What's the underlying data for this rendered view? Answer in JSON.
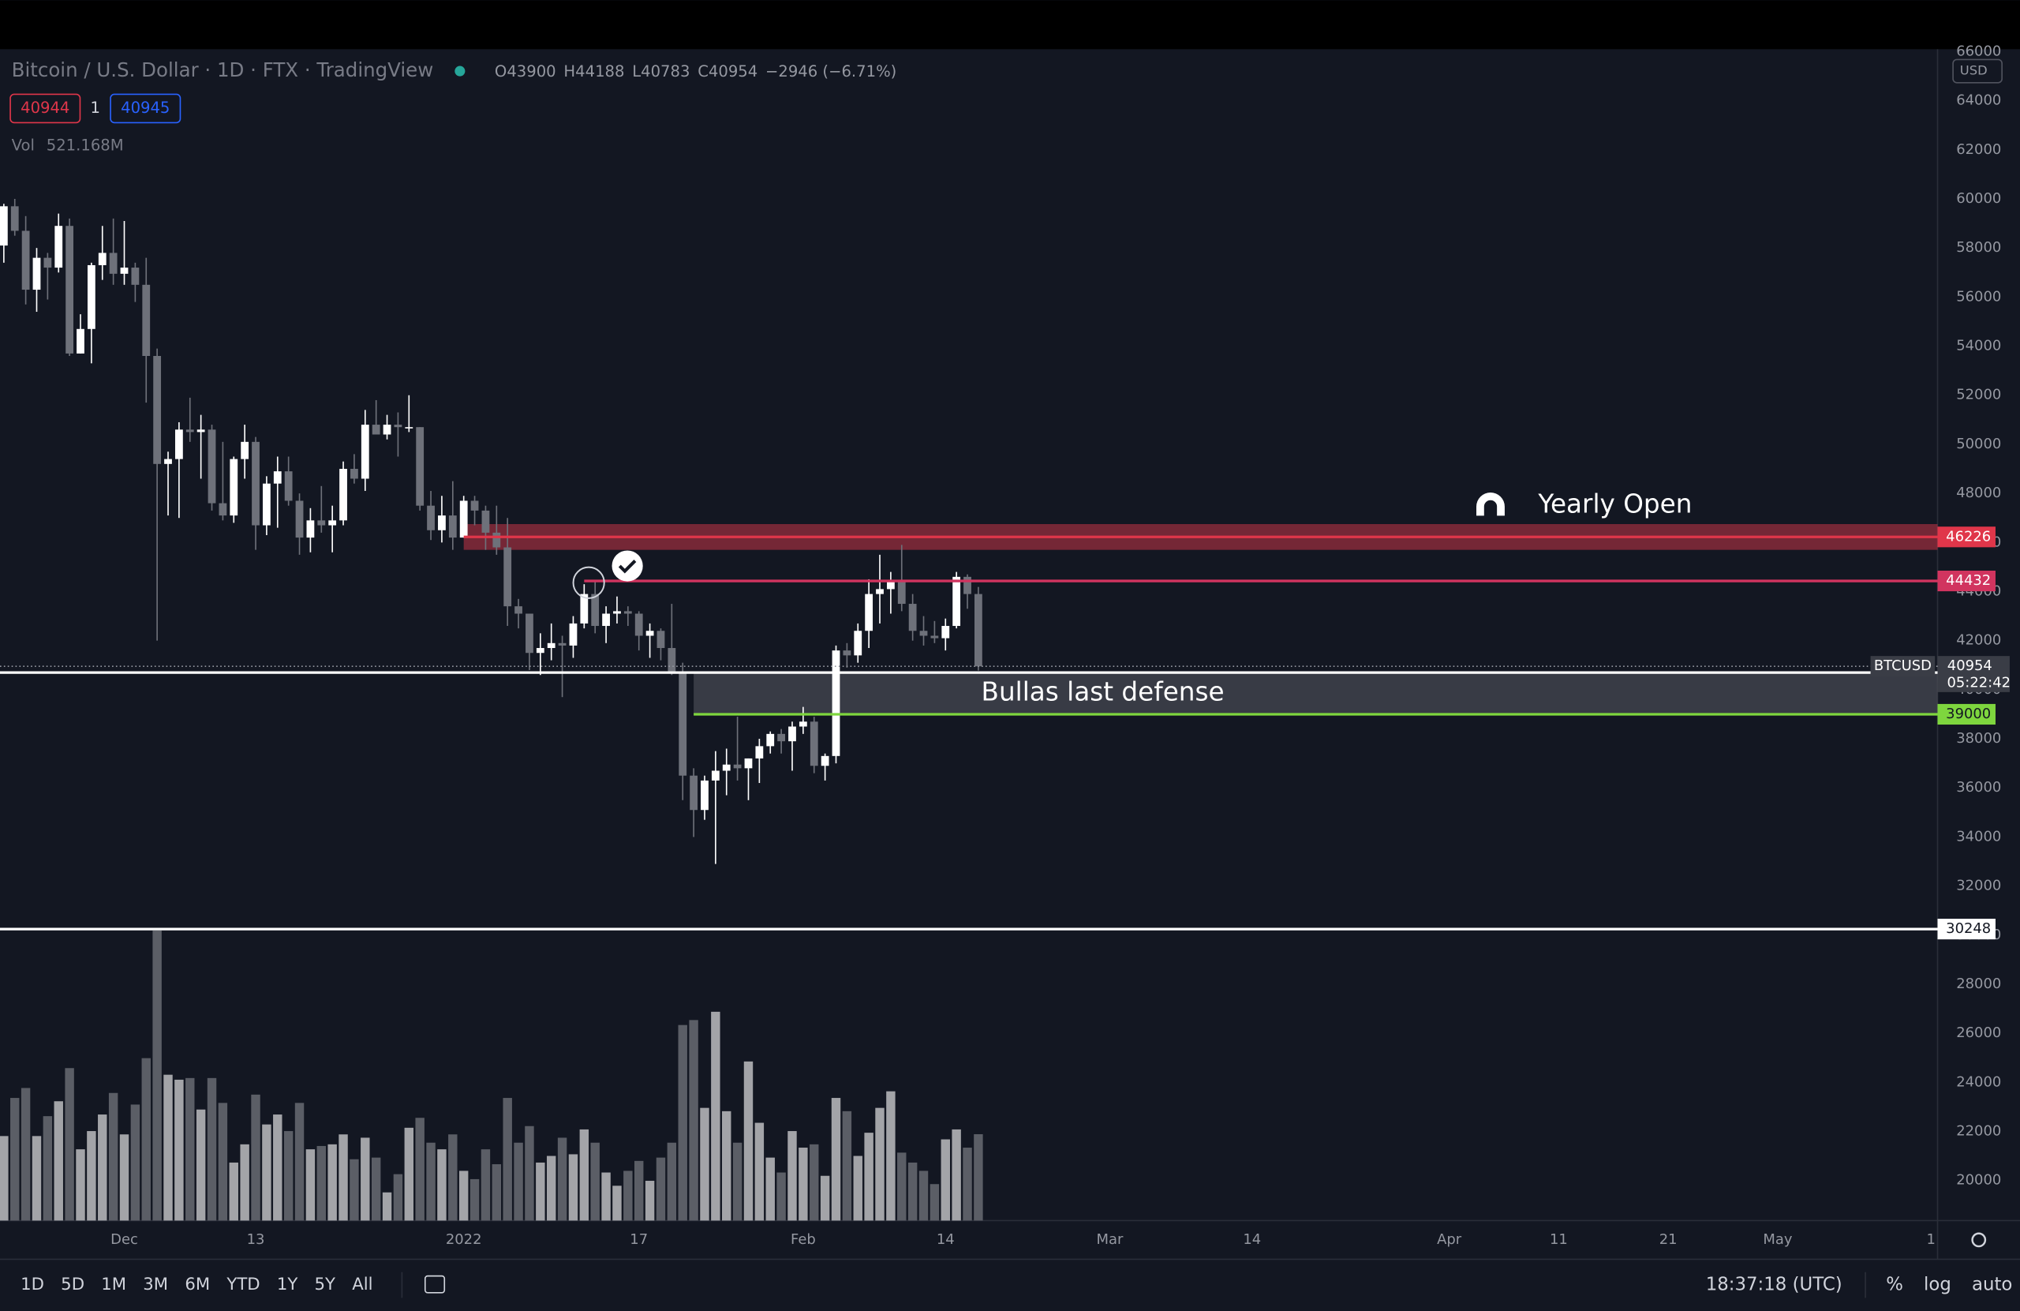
{
  "chart_data": {
    "type": "candlestick",
    "title": "Bitcoin / U.S. Dollar · 1D · FTX · TradingView",
    "ohlc_header": [
      "O43900",
      "H44188",
      "L40783",
      "C40954",
      "−2946 (−6.71%)"
    ],
    "order_boxes": [
      "40944",
      "1",
      "40945"
    ],
    "volume_label": "Vol",
    "volume_text": "521.168M",
    "currency": "USD",
    "open": [
      58100,
      59700,
      58700,
      56300,
      57600,
      57200,
      58900,
      53700,
      54700,
      57300,
      57800,
      56950,
      57200,
      56500,
      53600,
      49200,
      49400,
      50600,
      50500,
      50600,
      47600,
      47100,
      49400,
      50100,
      46700,
      48400,
      48900,
      47700,
      46200,
      46900,
      46700,
      46900,
      49000,
      48600,
      50800,
      50400,
      50800,
      50700,
      50700,
      47500,
      46500,
      47100,
      46200,
      47700,
      47300,
      46400,
      45800,
      43400,
      43100,
      41500,
      41700,
      41900,
      41800,
      42700,
      43900,
      42600,
      43100,
      43200,
      43100,
      42200,
      42400,
      41700,
      40700,
      36500,
      35100,
      36300,
      36700,
      36950,
      36800,
      37200,
      37700,
      38200,
      37900,
      38500,
      38700,
      36900,
      37300,
      41600,
      41400,
      42400,
      43900,
      44100,
      44400,
      43500,
      42400,
      42200,
      42100,
      42600,
      44600,
      43900
    ],
    "high": [
      59800,
      60000,
      59300,
      58000,
      57800,
      59400,
      59200,
      55300,
      57400,
      58900,
      59200,
      59100,
      57400,
      57600,
      53900,
      49700,
      50900,
      51900,
      51200,
      50800,
      50100,
      49500,
      50800,
      50300,
      48700,
      49500,
      49500,
      48000,
      47400,
      48300,
      47500,
      49300,
      49600,
      51400,
      51800,
      51200,
      51300,
      52000,
      50700,
      48100,
      47900,
      48500,
      47900,
      47900,
      47500,
      47500,
      47000,
      43700,
      43100,
      42300,
      42700,
      42200,
      43000,
      44300,
      44400,
      43400,
      43800,
      43400,
      43200,
      42700,
      42500,
      43500,
      41100,
      36800,
      36500,
      37500,
      37600,
      38900,
      37200,
      38000,
      38300,
      38400,
      38700,
      39300,
      38900,
      37400,
      41800,
      41900,
      42700,
      44500,
      45500,
      44800,
      45900,
      43900,
      43000,
      42800,
      42900,
      44800,
      44700,
      44188
    ],
    "low": [
      57400,
      58500,
      55700,
      55400,
      55900,
      57000,
      53600,
      53700,
      53300,
      56700,
      56500,
      56500,
      55800,
      51700,
      42000,
      47100,
      47000,
      50100,
      48600,
      47300,
      46900,
      46800,
      48600,
      45700,
      46300,
      46600,
      47500,
      45500,
      45600,
      46400,
      45600,
      46700,
      48400,
      48100,
      50400,
      50200,
      49500,
      50500,
      47300,
      46100,
      46000,
      45700,
      46200,
      46700,
      45700,
      45500,
      42600,
      42500,
      40800,
      40600,
      41200,
      39700,
      41300,
      42500,
      42300,
      41900,
      42700,
      42600,
      41600,
      41300,
      41200,
      40600,
      35500,
      34000,
      34700,
      32900,
      35700,
      36300,
      35500,
      36200,
      37400,
      37400,
      36700,
      38200,
      36600,
      36300,
      37000,
      40900,
      41100,
      41700,
      42700,
      43100,
      43200,
      42000,
      41800,
      41900,
      41600,
      42500,
      43300,
      40783
    ],
    "close": [
      59700,
      58700,
      56300,
      57600,
      57200,
      58900,
      53700,
      54700,
      57300,
      57800,
      56950,
      57200,
      56500,
      53600,
      49200,
      49400,
      50600,
      50500,
      50600,
      47600,
      47100,
      49400,
      50100,
      46700,
      48400,
      48900,
      47700,
      46200,
      46900,
      46700,
      46900,
      49000,
      48600,
      50800,
      50400,
      50800,
      50700,
      50700,
      47500,
      46500,
      47100,
      46200,
      47700,
      47300,
      46400,
      45800,
      43400,
      43100,
      41500,
      41700,
      41900,
      41800,
      42700,
      43900,
      42600,
      43100,
      43200,
      43100,
      42200,
      42400,
      41700,
      40700,
      36500,
      35100,
      36300,
      36700,
      36950,
      36800,
      37200,
      37700,
      38200,
      37900,
      38500,
      38700,
      36900,
      37300,
      41600,
      41400,
      42400,
      43900,
      44100,
      44400,
      43500,
      42400,
      42200,
      42100,
      42600,
      44600,
      43900,
      40954
    ],
    "volume": [
      510,
      740,
      800,
      510,
      630,
      720,
      920,
      430,
      540,
      640,
      770,
      520,
      700,
      980,
      1750,
      880,
      850,
      860,
      670,
      860,
      710,
      350,
      460,
      760,
      580,
      640,
      540,
      710,
      430,
      450,
      460,
      520,
      370,
      500,
      380,
      170,
      280,
      560,
      620,
      470,
      430,
      520,
      300,
      250,
      430,
      340,
      740,
      470,
      570,
      350,
      390,
      500,
      400,
      550,
      470,
      290,
      210,
      300,
      360,
      240,
      380,
      470,
      1180,
      1210,
      680,
      1260,
      660,
      470,
      960,
      590,
      380,
      290,
      540,
      440,
      460,
      270,
      740,
      660,
      390,
      530,
      680,
      780,
      410,
      350,
      300,
      220,
      490,
      550,
      440,
      521.168
    ],
    "up_color": "#ffffff",
    "down_color": "#6e717a",
    "volume_up_color": "#a3a4a8",
    "volume_down_color": "#5b5e66",
    "xlim": [
      -0.35,
      176.6
    ],
    "xticks": [
      {
        "value": 11,
        "label": "Dec"
      },
      {
        "value": 23,
        "label": "13"
      },
      {
        "value": 42,
        "label": "2022"
      },
      {
        "value": 58,
        "label": "17"
      },
      {
        "value": 73,
        "label": "Feb"
      },
      {
        "value": 86,
        "label": "14"
      },
      {
        "value": 101,
        "label": "Mar"
      },
      {
        "value": 114,
        "label": "14"
      },
      {
        "value": 132,
        "label": "Apr"
      },
      {
        "value": 142,
        "label": "11"
      },
      {
        "value": 152,
        "label": "21"
      },
      {
        "value": 162,
        "label": "May"
      },
      {
        "value": 176,
        "label": "1"
      }
    ],
    "ylim": [
      18370,
      66100
    ],
    "yticks": [
      20000,
      22000,
      24000,
      26000,
      28000,
      30000,
      32000,
      34000,
      36000,
      38000,
      40000,
      42000,
      44000,
      46000,
      48000,
      50000,
      52000,
      54000,
      56000,
      58000,
      60000,
      62000,
      64000,
      66000
    ],
    "grid": false,
    "zones": [
      {
        "from": 45700,
        "to": 46750,
        "x_from": 42,
        "color": "#d8384a"
      },
      {
        "from": 39000,
        "to": 40700,
        "x_from": 63,
        "color": "#5d6068",
        "label": "Bullas last defense"
      }
    ],
    "price_lines": [
      {
        "value": 46226,
        "x_from": 42,
        "color": "#e0364a",
        "text_color": "#ffffff"
      },
      {
        "value": 44432,
        "x_from": 53,
        "color": "#d1345f",
        "text_color": "#ffffff"
      },
      {
        "value": 40700,
        "x_from": -0.35,
        "color": "#ffffff",
        "text_color": "#131722"
      },
      {
        "value": 39000,
        "x_from": 63,
        "color": "#7ed63e",
        "text_color": "#131722"
      },
      {
        "value": 30248,
        "x_from": -0.35,
        "color": "#ffffff",
        "text_color": "#131722"
      }
    ],
    "last_price": 40954,
    "symbol": "BTCUSD",
    "countdown": "05:22:42",
    "annotation": "Yearly Open"
  },
  "toolbar": {
    "timeframes": [
      "1D",
      "5D",
      "1M",
      "3M",
      "6M",
      "YTD",
      "1Y",
      "5Y",
      "All"
    ],
    "clock": "18:37:18 (UTC)",
    "scale_options": [
      "%",
      "log",
      "auto"
    ]
  }
}
